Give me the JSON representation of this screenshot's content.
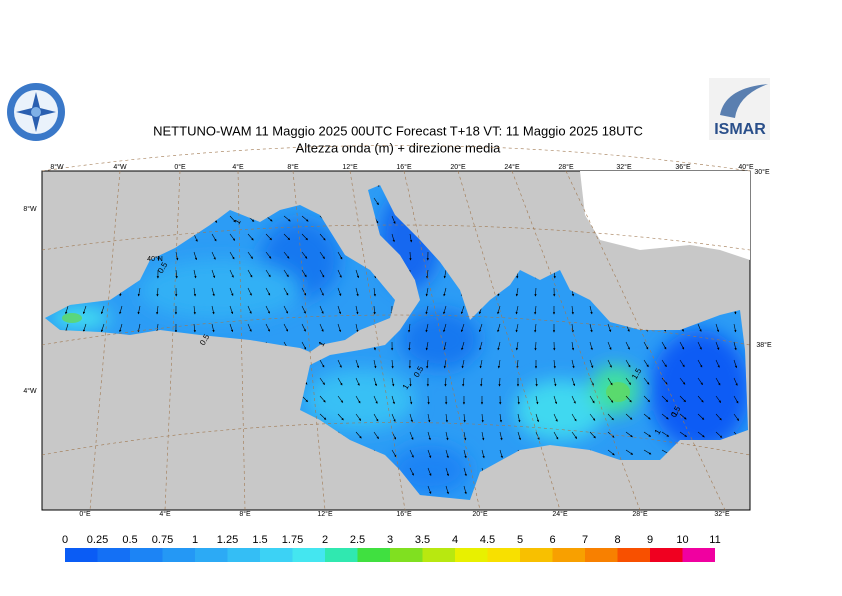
{
  "header": {
    "title": "NETTUNO-WAM  11   Maggio  2025 00UTC Forecast T+18 VT: 11   Maggio  2025 18UTC",
    "subtitle": "Altezza onda (m) + direzione media",
    "right_logo": "ISMAR"
  },
  "map": {
    "top_labels": [
      "8°W",
      "4°W",
      "0°E",
      "4°E",
      "8°E",
      "12°E",
      "16°E",
      "20°E",
      "24°E",
      "28°E",
      "32°E",
      "36°E",
      "40°E"
    ],
    "bottom_labels": [
      "0°E",
      "4°E",
      "8°E",
      "12°E",
      "16°E",
      "20°E",
      "24°E",
      "28°E",
      "32°E"
    ],
    "left_labels": [
      "8°W",
      "4°W"
    ],
    "right_labels": [
      "30°E",
      "38°E"
    ],
    "inner_labels": [
      "40°N"
    ],
    "contour_labels": [
      "1",
      "0.5",
      "1",
      "1",
      "0.5",
      "1",
      "1.5",
      "0.5",
      "1",
      "0.5"
    ]
  },
  "legend": {
    "ticks": [
      0,
      0.25,
      0.5,
      0.75,
      1,
      1.25,
      1.5,
      1.75,
      2,
      2.5,
      3,
      3.5,
      4,
      4.5,
      5,
      6,
      7,
      8,
      9,
      10,
      11
    ],
    "colors": [
      "#0a5cf5",
      "#1470f5",
      "#1c84f5",
      "#2498f5",
      "#2caaf5",
      "#34bef5",
      "#3cd2f5",
      "#44e6f0",
      "#30e8b0",
      "#40e040",
      "#80e020",
      "#b8e810",
      "#e8f000",
      "#f8e000",
      "#f8c000",
      "#f8a000",
      "#f88000",
      "#f85000",
      "#f00020",
      "#f000a0"
    ]
  }
}
